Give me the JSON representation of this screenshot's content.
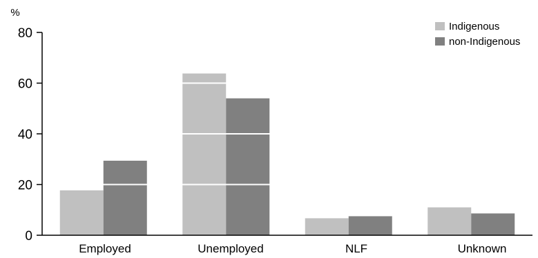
{
  "chart_data": {
    "type": "bar",
    "unit_label": "%",
    "categories": [
      "Employed",
      "Unemployed",
      "NLF",
      "Unknown"
    ],
    "series": [
      {
        "name": "Indigenous",
        "values": [
          17.7,
          63.8,
          6.7,
          11.0
        ],
        "color": "#c0c0c0"
      },
      {
        "name": "non-Indigenous",
        "values": [
          29.4,
          54.0,
          7.5,
          8.6
        ],
        "color": "#808080"
      }
    ],
    "ylim": [
      0,
      80
    ],
    "yticks": [
      "0",
      "20",
      "40",
      "60",
      "80"
    ],
    "grid": true,
    "grid_color": "#ffffff",
    "legend_position": "top-right"
  }
}
